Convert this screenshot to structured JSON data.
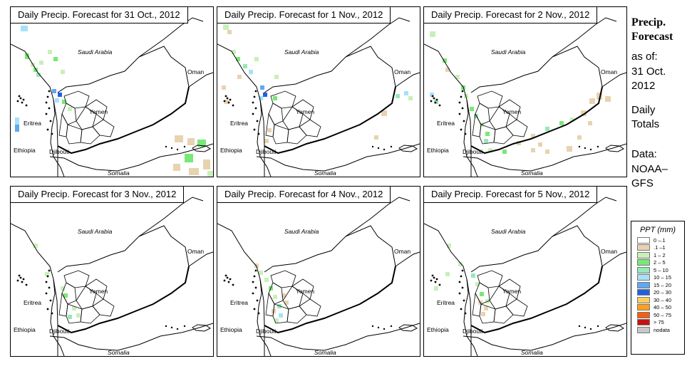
{
  "panels": [
    {
      "title": "Daily Precip. Forecast for  31 Oct., 2012",
      "id": "p1"
    },
    {
      "title": "Daily Precip. Forecast for  1 Nov., 2012",
      "id": "p2"
    },
    {
      "title": "Daily Precip. Forecast for  2 Nov., 2012",
      "id": "p3"
    },
    {
      "title": "Daily Precip. Forecast for  3 Nov., 2012",
      "id": "p4"
    },
    {
      "title": "Daily Precip. Forecast for  4 Nov., 2012",
      "id": "p5"
    },
    {
      "title": "Daily Precip. Forecast for  5 Nov., 2012",
      "id": "p6"
    }
  ],
  "map_labels": {
    "saudi": "Saudi Arabia",
    "oman": "Oman",
    "yemen": "Yemen",
    "eritrea": "Eritrea",
    "ethiopia": "Ethiopia",
    "djibouti": "Djibouti",
    "somalia": "Somalia"
  },
  "sidebar": {
    "heading1": "Precip.",
    "heading2": "Forecast",
    "asof": "as of:",
    "date1": "31 Oct.",
    "date2": "2012",
    "daily": "Daily",
    "totals": "Totals",
    "data": "Data:",
    "source1": "NOAA–",
    "source2": "GFS"
  },
  "legend": {
    "title": "PPT (mm)",
    "items": [
      {
        "label": "0 –.1",
        "color": "#ffffff"
      },
      {
        "label": ".1 –1",
        "color": "#e8d3b0"
      },
      {
        "label": "1 – 2",
        "color": "#c8f0b8"
      },
      {
        "label": "2 – 5",
        "color": "#78e878"
      },
      {
        "label": "5 – 10",
        "color": "#98e8b8"
      },
      {
        "label": "10 – 15",
        "color": "#a8e0f8"
      },
      {
        "label": "15 – 20",
        "color": "#60a8f0"
      },
      {
        "label": "20 – 30",
        "color": "#2060e0"
      },
      {
        "label": "30 – 40",
        "color": "#ffd060"
      },
      {
        "label": "40 – 50",
        "color": "#ffa020"
      },
      {
        "label": "50 – 75",
        "color": "#f06010"
      },
      {
        "label": "> 75",
        "color": "#c81010"
      },
      {
        "label": "nodata",
        "color": "#c8c8c8"
      }
    ]
  }
}
